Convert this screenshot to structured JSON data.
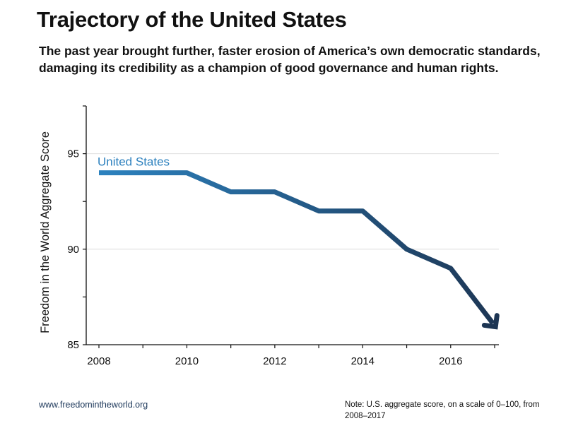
{
  "header": {
    "title": "Trajectory of the United States",
    "subtitle": "The past year brought further, faster erosion of America’s own democratic standards, damaging its credibility as a champion of good governance and human rights."
  },
  "footer": {
    "source": "www.freedomintheworld.org",
    "note": "Note: U.S. aggregate score, on a scale of 0–100, from 2008–2017"
  },
  "colors": {
    "line_start": "#2c82bf",
    "line_end": "#1d3553",
    "series_label": "#2a7fbd",
    "grid": "#dddddd",
    "axis": "#111111"
  },
  "chart_data": {
    "type": "line",
    "title": "Trajectory of the United States",
    "ylabel": "Freedom in the World Aggregate Score",
    "xlabel": "",
    "x": [
      2008,
      2009,
      2010,
      2011,
      2012,
      2013,
      2014,
      2015,
      2016,
      2017
    ],
    "series": [
      {
        "name": "United States",
        "values": [
          94,
          94,
          94,
          93,
          93,
          92,
          92,
          90,
          89,
          86
        ]
      }
    ],
    "xlim": [
      2008,
      2017
    ],
    "ylim": [
      85,
      97.5
    ],
    "xticks": [
      2008,
      2010,
      2012,
      2014,
      2016
    ],
    "xtick_labels": [
      "2008",
      "2010",
      "2012",
      "2014",
      "2016"
    ],
    "yticks": [
      85,
      90,
      95
    ],
    "ytick_labels": [
      "85",
      "90",
      "95"
    ],
    "grid": "horizontal",
    "legend": "inline label at start of line",
    "end_marker": "arrow"
  }
}
